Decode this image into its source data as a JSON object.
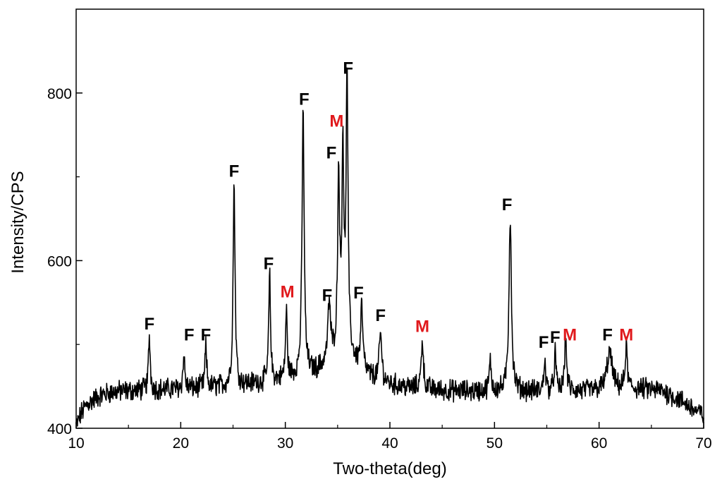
{
  "chart_data": {
    "type": "line",
    "title": "",
    "xlabel": "Two-theta(deg)",
    "ylabel": "Intensity/CPS",
    "xlim": [
      10,
      70
    ],
    "ylim": [
      400,
      900
    ],
    "xticks": [
      "10",
      "20",
      "30",
      "40",
      "50",
      "60",
      "70"
    ],
    "yticks": [
      "400",
      "600",
      "800"
    ],
    "grid": false,
    "legend": "none",
    "colors": {
      "line": "#000000",
      "F": "#000000",
      "M": "#e0191c"
    },
    "baseline": [
      [
        10.0,
        403
      ],
      [
        10.5,
        418
      ],
      [
        11.0,
        428
      ],
      [
        12.0,
        437
      ],
      [
        13.0,
        442
      ],
      [
        14.0,
        444
      ],
      [
        16.0,
        445
      ],
      [
        18.0,
        446
      ],
      [
        20.0,
        447
      ],
      [
        22.0,
        448
      ],
      [
        24.0,
        450
      ],
      [
        26.0,
        452
      ],
      [
        28.0,
        455
      ],
      [
        30.0,
        458
      ],
      [
        31.0,
        462
      ],
      [
        33.0,
        468
      ],
      [
        34.5,
        482
      ],
      [
        35.5,
        500
      ],
      [
        36.5,
        480
      ],
      [
        38.0,
        462
      ],
      [
        40.0,
        452
      ],
      [
        42.0,
        448
      ],
      [
        45.0,
        445
      ],
      [
        48.0,
        444
      ],
      [
        50.0,
        444
      ],
      [
        52.0,
        444
      ],
      [
        55.0,
        444
      ],
      [
        58.0,
        444
      ],
      [
        60.0,
        445
      ],
      [
        62.0,
        446
      ],
      [
        64.0,
        447
      ],
      [
        66.0,
        445
      ],
      [
        68.0,
        432
      ],
      [
        69.0,
        423
      ],
      [
        70.0,
        415
      ]
    ],
    "peaks": [
      {
        "x": 17.0,
        "y": 510,
        "w": 0.1
      },
      {
        "x": 20.3,
        "y": 488,
        "w": 0.1
      },
      {
        "x": 22.4,
        "y": 497,
        "w": 0.1
      },
      {
        "x": 25.1,
        "y": 692,
        "w": 0.11
      },
      {
        "x": 28.5,
        "y": 582,
        "w": 0.1
      },
      {
        "x": 30.1,
        "y": 540,
        "w": 0.1
      },
      {
        "x": 31.7,
        "y": 778,
        "w": 0.12
      },
      {
        "x": 34.2,
        "y": 548,
        "w": 0.15
      },
      {
        "x": 35.1,
        "y": 702,
        "w": 0.11
      },
      {
        "x": 35.5,
        "y": 732,
        "w": 0.1
      },
      {
        "x": 35.9,
        "y": 815,
        "w": 0.11
      },
      {
        "x": 37.3,
        "y": 545,
        "w": 0.12
      },
      {
        "x": 39.1,
        "y": 513,
        "w": 0.14
      },
      {
        "x": 43.1,
        "y": 507,
        "w": 0.12
      },
      {
        "x": 49.6,
        "y": 478,
        "w": 0.12
      },
      {
        "x": 51.5,
        "y": 652,
        "w": 0.14
      },
      {
        "x": 54.8,
        "y": 482,
        "w": 0.1
      },
      {
        "x": 55.8,
        "y": 490,
        "w": 0.1
      },
      {
        "x": 56.8,
        "y": 506,
        "w": 0.12
      },
      {
        "x": 61.0,
        "y": 490,
        "w": 0.3
      },
      {
        "x": 62.6,
        "y": 496,
        "w": 0.12
      }
    ],
    "annotations": [
      {
        "text": "F",
        "x": 17.0,
        "y": 518,
        "color": "black"
      },
      {
        "text": "F",
        "x": 20.8,
        "y": 505,
        "color": "black"
      },
      {
        "text": "F",
        "x": 22.4,
        "y": 505,
        "color": "black"
      },
      {
        "text": "F",
        "x": 25.1,
        "y": 700,
        "color": "black"
      },
      {
        "text": "F",
        "x": 28.4,
        "y": 590,
        "color": "black"
      },
      {
        "text": "M",
        "x": 30.2,
        "y": 556,
        "color": "red"
      },
      {
        "text": "F",
        "x": 31.8,
        "y": 786,
        "color": "black"
      },
      {
        "text": "F",
        "x": 34.0,
        "y": 552,
        "color": "black"
      },
      {
        "text": "F",
        "x": 34.4,
        "y": 722,
        "color": "black"
      },
      {
        "text": "M",
        "x": 34.9,
        "y": 760,
        "color": "red"
      },
      {
        "text": "F",
        "x": 36.0,
        "y": 823,
        "color": "black"
      },
      {
        "text": "F",
        "x": 37.0,
        "y": 555,
        "color": "black"
      },
      {
        "text": "F",
        "x": 39.1,
        "y": 528,
        "color": "black"
      },
      {
        "text": "M",
        "x": 43.1,
        "y": 515,
        "color": "red"
      },
      {
        "text": "F",
        "x": 51.2,
        "y": 660,
        "color": "black"
      },
      {
        "text": "F",
        "x": 54.7,
        "y": 496,
        "color": "black"
      },
      {
        "text": "F",
        "x": 55.8,
        "y": 502,
        "color": "black"
      },
      {
        "text": "M",
        "x": 57.2,
        "y": 505,
        "color": "red"
      },
      {
        "text": "F",
        "x": 60.8,
        "y": 505,
        "color": "black"
      },
      {
        "text": "M",
        "x": 62.6,
        "y": 505,
        "color": "red"
      }
    ]
  }
}
